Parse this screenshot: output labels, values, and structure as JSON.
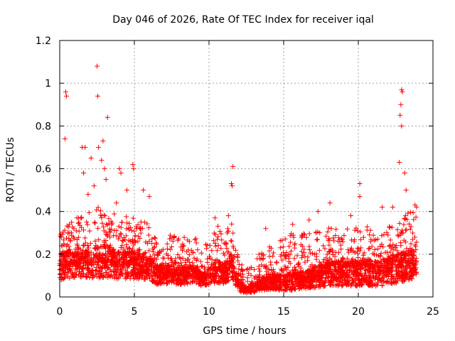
{
  "chart_data": {
    "type": "scatter",
    "title": "Day 046 of 2026, Rate Of TEC Index for receiver iqal",
    "xlabel": "GPS time / hours",
    "ylabel": "ROTI / TECUs",
    "xlim": [
      0,
      25
    ],
    "ylim": [
      0,
      1.2
    ],
    "xticks": [
      0,
      5,
      10,
      15,
      20,
      25
    ],
    "xtick_labels": [
      "0",
      "5",
      "10",
      "15",
      "20",
      "25"
    ],
    "yticks": [
      0,
      0.2,
      0.4,
      0.6,
      0.8,
      1.0,
      1.2
    ],
    "ytick_labels": [
      "0",
      "0.2",
      "0.4",
      "0.6",
      "0.8",
      "1",
      "1.2"
    ],
    "grid": true,
    "marker": "+",
    "color": "#ff0000",
    "series": [
      {
        "name": "ROTI",
        "outliers": [
          [
            0.4,
            0.96
          ],
          [
            0.45,
            0.94
          ],
          [
            0.35,
            0.74
          ],
          [
            2.5,
            1.08
          ],
          [
            2.55,
            0.94
          ],
          [
            3.2,
            0.84
          ],
          [
            2.9,
            0.73
          ],
          [
            2.6,
            0.7
          ],
          [
            1.5,
            0.7
          ],
          [
            1.7,
            0.7
          ],
          [
            2.1,
            0.65
          ],
          [
            1.6,
            0.58
          ],
          [
            2.3,
            0.52
          ],
          [
            2.8,
            0.64
          ],
          [
            3.0,
            0.6
          ],
          [
            3.1,
            0.55
          ],
          [
            4.0,
            0.6
          ],
          [
            4.1,
            0.58
          ],
          [
            4.9,
            0.62
          ],
          [
            4.95,
            0.6
          ],
          [
            4.5,
            0.5
          ],
          [
            5.6,
            0.5
          ],
          [
            6.0,
            0.47
          ],
          [
            3.8,
            0.44
          ],
          [
            1.9,
            0.48
          ],
          [
            11.6,
            0.61
          ],
          [
            11.5,
            0.53
          ],
          [
            11.55,
            0.52
          ],
          [
            10.4,
            0.37
          ],
          [
            11.3,
            0.38
          ],
          [
            18.1,
            0.44
          ],
          [
            17.3,
            0.4
          ],
          [
            20.1,
            0.53
          ],
          [
            20.1,
            0.47
          ],
          [
            19.5,
            0.38
          ],
          [
            21.6,
            0.42
          ],
          [
            22.3,
            0.42
          ],
          [
            22.9,
            0.97
          ],
          [
            22.95,
            0.96
          ],
          [
            22.85,
            0.9
          ],
          [
            22.8,
            0.85
          ],
          [
            22.9,
            0.8
          ],
          [
            22.75,
            0.63
          ],
          [
            23.1,
            0.58
          ],
          [
            23.2,
            0.5
          ],
          [
            23.8,
            0.43
          ],
          [
            23.9,
            0.42
          ],
          [
            13.8,
            0.32
          ],
          [
            15.6,
            0.34
          ],
          [
            16.7,
            0.36
          ]
        ],
        "envelope_hours": [
          0,
          0.5,
          1,
          1.5,
          2,
          2.5,
          3,
          3.5,
          4,
          4.5,
          5,
          5.5,
          6,
          6.5,
          7,
          7.5,
          8,
          8.5,
          9,
          9.5,
          10,
          10.5,
          11,
          11.5,
          12,
          12.5,
          13,
          13.5,
          14,
          14.5,
          15,
          15.5,
          16,
          16.5,
          17,
          17.5,
          18,
          18.5,
          19,
          19.5,
          20,
          20.5,
          21,
          21.5,
          22,
          22.5,
          23,
          23.5,
          23.9
        ],
        "envelope_min": [
          0.04,
          0.04,
          0.05,
          0.05,
          0.04,
          0.04,
          0.04,
          0.04,
          0.04,
          0.04,
          0.04,
          0.04,
          0.04,
          0.03,
          0.03,
          0.03,
          0.03,
          0.03,
          0.04,
          0.03,
          0.03,
          0.03,
          0.03,
          0.04,
          0.01,
          0.01,
          0.01,
          0.01,
          0.01,
          0.01,
          0.0,
          0.0,
          0.01,
          0.01,
          0.01,
          0.01,
          0.01,
          0.01,
          0.01,
          0.01,
          0.01,
          0.01,
          0.01,
          0.01,
          0.01,
          0.02,
          0.02,
          0.03,
          0.03
        ],
        "envelope_max": [
          0.3,
          0.34,
          0.36,
          0.4,
          0.42,
          0.42,
          0.44,
          0.42,
          0.4,
          0.38,
          0.38,
          0.36,
          0.34,
          0.26,
          0.26,
          0.3,
          0.28,
          0.28,
          0.3,
          0.24,
          0.3,
          0.34,
          0.3,
          0.38,
          0.2,
          0.14,
          0.16,
          0.22,
          0.24,
          0.26,
          0.28,
          0.3,
          0.3,
          0.3,
          0.3,
          0.32,
          0.34,
          0.34,
          0.34,
          0.34,
          0.32,
          0.34,
          0.32,
          0.3,
          0.34,
          0.34,
          0.38,
          0.4,
          0.4
        ],
        "envelope_mode": [
          0.14,
          0.15,
          0.15,
          0.16,
          0.16,
          0.16,
          0.17,
          0.16,
          0.15,
          0.15,
          0.15,
          0.14,
          0.14,
          0.1,
          0.1,
          0.11,
          0.1,
          0.1,
          0.11,
          0.08,
          0.1,
          0.12,
          0.11,
          0.14,
          0.05,
          0.03,
          0.04,
          0.06,
          0.07,
          0.07,
          0.07,
          0.08,
          0.08,
          0.08,
          0.09,
          0.1,
          0.11,
          0.11,
          0.11,
          0.11,
          0.11,
          0.12,
          0.11,
          0.11,
          0.12,
          0.13,
          0.14,
          0.15,
          0.15
        ],
        "point_count": 3800
      }
    ]
  }
}
